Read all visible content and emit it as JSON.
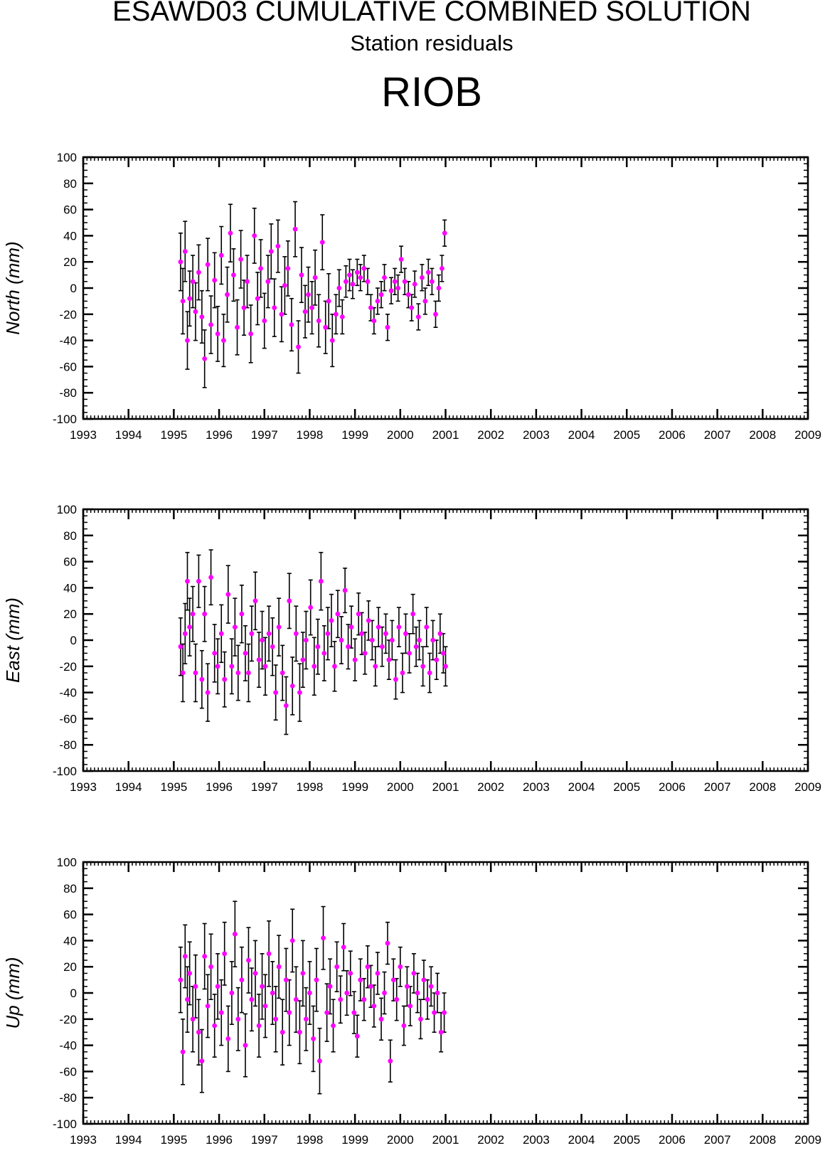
{
  "header": {
    "title": "ESAWD03 CUMULATIVE COMBINED SOLUTION",
    "subtitle": "Station residuals",
    "station": "RIOB"
  },
  "colors": {
    "marker": "#ff00ff",
    "errorbar": "#000000",
    "axis": "#000000"
  },
  "chart_data": [
    {
      "type": "scatter",
      "ylabel": "North (mm)",
      "xlim": [
        1993,
        2009
      ],
      "ylim": [
        -100,
        100
      ],
      "x_ticks": [
        "1993",
        "1994",
        "1995",
        "1996",
        "1997",
        "1998",
        "1999",
        "2000",
        "2001",
        "2002",
        "2003",
        "2004",
        "2005",
        "2006",
        "2007",
        "2008",
        "2009"
      ],
      "y_ticks": [
        "100",
        "80",
        "60",
        "40",
        "20",
        "0",
        "-20",
        "-40",
        "-60",
        "-80",
        "-100"
      ],
      "points": [
        [
          1995.15,
          20,
          22
        ],
        [
          1995.2,
          -10,
          25
        ],
        [
          1995.25,
          28,
          23
        ],
        [
          1995.3,
          -40,
          22
        ],
        [
          1995.35,
          -8,
          21
        ],
        [
          1995.42,
          5,
          20
        ],
        [
          1995.48,
          -18,
          22
        ],
        [
          1995.55,
          12,
          21
        ],
        [
          1995.62,
          -22,
          20
        ],
        [
          1995.68,
          -54,
          22
        ],
        [
          1995.75,
          18,
          20
        ],
        [
          1995.82,
          -28,
          22
        ],
        [
          1995.9,
          6,
          21
        ],
        [
          1995.97,
          -35,
          21
        ],
        [
          1996.05,
          25,
          22
        ],
        [
          1996.1,
          -40,
          20
        ],
        [
          1996.18,
          -5,
          21
        ],
        [
          1996.25,
          42,
          22
        ],
        [
          1996.32,
          10,
          20
        ],
        [
          1996.4,
          -30,
          21
        ],
        [
          1996.48,
          22,
          22
        ],
        [
          1996.55,
          -15,
          21
        ],
        [
          1996.62,
          5,
          20
        ],
        [
          1996.7,
          -35,
          22
        ],
        [
          1996.78,
          40,
          21
        ],
        [
          1996.85,
          -8,
          20
        ],
        [
          1996.92,
          15,
          22
        ],
        [
          1997.0,
          -25,
          21
        ],
        [
          1997.08,
          5,
          20
        ],
        [
          1997.15,
          28,
          21
        ],
        [
          1997.22,
          -15,
          22
        ],
        [
          1997.3,
          32,
          20
        ],
        [
          1997.38,
          -20,
          21
        ],
        [
          1997.45,
          2,
          22
        ],
        [
          1997.52,
          15,
          21
        ],
        [
          1997.6,
          -28,
          20
        ],
        [
          1997.68,
          45,
          21
        ],
        [
          1997.75,
          -45,
          20
        ],
        [
          1997.82,
          10,
          21
        ],
        [
          1997.9,
          -18,
          20
        ],
        [
          1997.97,
          -5,
          21
        ],
        [
          1998.05,
          -15,
          20
        ],
        [
          1998.12,
          8,
          21
        ],
        [
          1998.2,
          -25,
          20
        ],
        [
          1998.28,
          35,
          21
        ],
        [
          1998.35,
          -30,
          20
        ],
        [
          1998.42,
          -10,
          21
        ],
        [
          1998.5,
          -40,
          20
        ],
        [
          1998.58,
          -20,
          15
        ],
        [
          1998.65,
          0,
          14
        ],
        [
          1998.72,
          -22,
          13
        ],
        [
          1998.8,
          5,
          12
        ],
        [
          1998.88,
          10,
          12
        ],
        [
          1998.95,
          3,
          11
        ],
        [
          1999.05,
          12,
          10
        ],
        [
          1999.12,
          8,
          10
        ],
        [
          1999.2,
          15,
          10
        ],
        [
          1999.28,
          5,
          10
        ],
        [
          1999.35,
          -15,
          10
        ],
        [
          1999.42,
          -25,
          10
        ],
        [
          1999.5,
          -10,
          10
        ],
        [
          1999.58,
          -5,
          10
        ],
        [
          1999.65,
          8,
          10
        ],
        [
          1999.72,
          -30,
          10
        ],
        [
          1999.8,
          -2,
          10
        ],
        [
          1999.88,
          5,
          10
        ],
        [
          1999.95,
          0,
          10
        ],
        [
          2000.02,
          22,
          10
        ],
        [
          2000.1,
          5,
          10
        ],
        [
          2000.18,
          -5,
          10
        ],
        [
          2000.25,
          -15,
          10
        ],
        [
          2000.32,
          3,
          10
        ],
        [
          2000.4,
          -22,
          10
        ],
        [
          2000.48,
          8,
          10
        ],
        [
          2000.55,
          -10,
          10
        ],
        [
          2000.62,
          12,
          10
        ],
        [
          2000.7,
          5,
          10
        ],
        [
          2000.78,
          -20,
          10
        ],
        [
          2000.85,
          0,
          10
        ],
        [
          2000.92,
          15,
          10
        ],
        [
          2000.98,
          42,
          10
        ]
      ]
    },
    {
      "type": "scatter",
      "ylabel": "East (mm)",
      "xlim": [
        1993,
        2009
      ],
      "ylim": [
        -100,
        100
      ],
      "x_ticks": [
        "1993",
        "1994",
        "1995",
        "1996",
        "1997",
        "1998",
        "1999",
        "2000",
        "2001",
        "2002",
        "2003",
        "2004",
        "2005",
        "2006",
        "2007",
        "2008",
        "2009"
      ],
      "y_ticks": [
        "100",
        "80",
        "60",
        "40",
        "20",
        "0",
        "-20",
        "-40",
        "-60",
        "-80",
        "-100"
      ],
      "points": [
        [
          1995.15,
          -5,
          22
        ],
        [
          1995.2,
          -25,
          22
        ],
        [
          1995.25,
          5,
          23
        ],
        [
          1995.3,
          45,
          22
        ],
        [
          1995.35,
          10,
          22
        ],
        [
          1995.42,
          20,
          21
        ],
        [
          1995.48,
          -25,
          22
        ],
        [
          1995.55,
          45,
          20
        ],
        [
          1995.62,
          -30,
          22
        ],
        [
          1995.68,
          20,
          21
        ],
        [
          1995.75,
          -40,
          22
        ],
        [
          1995.82,
          48,
          21
        ],
        [
          1995.9,
          -10,
          22
        ],
        [
          1995.97,
          -20,
          21
        ],
        [
          1996.05,
          5,
          22
        ],
        [
          1996.12,
          -30,
          21
        ],
        [
          1996.2,
          35,
          22
        ],
        [
          1996.28,
          -20,
          21
        ],
        [
          1996.35,
          10,
          22
        ],
        [
          1996.42,
          -25,
          21
        ],
        [
          1996.5,
          20,
          22
        ],
        [
          1996.58,
          -10,
          21
        ],
        [
          1996.65,
          -25,
          22
        ],
        [
          1996.72,
          5,
          21
        ],
        [
          1996.8,
          30,
          22
        ],
        [
          1996.88,
          -15,
          21
        ],
        [
          1996.95,
          0,
          22
        ],
        [
          1997.02,
          -20,
          22
        ],
        [
          1997.1,
          5,
          21
        ],
        [
          1997.18,
          -5,
          22
        ],
        [
          1997.25,
          -40,
          21
        ],
        [
          1997.32,
          10,
          22
        ],
        [
          1997.4,
          -25,
          21
        ],
        [
          1997.48,
          -50,
          22
        ],
        [
          1997.55,
          30,
          21
        ],
        [
          1997.62,
          -35,
          22
        ],
        [
          1997.7,
          5,
          21
        ],
        [
          1997.78,
          -40,
          22
        ],
        [
          1997.85,
          -15,
          21
        ],
        [
          1997.92,
          0,
          22
        ],
        [
          1998.02,
          25,
          21
        ],
        [
          1998.1,
          -20,
          22
        ],
        [
          1998.18,
          -5,
          21
        ],
        [
          1998.25,
          45,
          22
        ],
        [
          1998.32,
          -10,
          21
        ],
        [
          1998.4,
          5,
          20
        ],
        [
          1998.48,
          15,
          20
        ],
        [
          1998.55,
          -20,
          19
        ],
        [
          1998.62,
          20,
          18
        ],
        [
          1998.7,
          0,
          18
        ],
        [
          1998.78,
          38,
          17
        ],
        [
          1998.85,
          -5,
          17
        ],
        [
          1998.92,
          10,
          16
        ],
        [
          1999.0,
          -15,
          16
        ],
        [
          1999.08,
          20,
          16
        ],
        [
          1999.15,
          5,
          16
        ],
        [
          1999.22,
          -10,
          16
        ],
        [
          1999.3,
          15,
          15
        ],
        [
          1999.38,
          0,
          15
        ],
        [
          1999.45,
          -20,
          15
        ],
        [
          1999.52,
          10,
          15
        ],
        [
          1999.6,
          -5,
          15
        ],
        [
          1999.68,
          5,
          15
        ],
        [
          1999.75,
          -15,
          15
        ],
        [
          1999.82,
          0,
          15
        ],
        [
          1999.9,
          -30,
          15
        ],
        [
          1999.97,
          10,
          15
        ],
        [
          2000.05,
          -25,
          15
        ],
        [
          2000.12,
          5,
          15
        ],
        [
          2000.2,
          -10,
          15
        ],
        [
          2000.28,
          20,
          15
        ],
        [
          2000.35,
          -5,
          15
        ],
        [
          2000.42,
          0,
          15
        ],
        [
          2000.5,
          -20,
          15
        ],
        [
          2000.58,
          10,
          15
        ],
        [
          2000.65,
          -25,
          15
        ],
        [
          2000.72,
          0,
          15
        ],
        [
          2000.8,
          -15,
          15
        ],
        [
          2000.88,
          5,
          15
        ],
        [
          2000.95,
          -10,
          15
        ],
        [
          2001.0,
          -20,
          15
        ]
      ]
    },
    {
      "type": "scatter",
      "ylabel": "Up (mm)",
      "xlim": [
        1993,
        2009
      ],
      "ylim": [
        -100,
        100
      ],
      "x_ticks": [
        "1993",
        "1994",
        "1995",
        "1996",
        "1997",
        "1998",
        "1999",
        "2000",
        "2001",
        "2002",
        "2003",
        "2004",
        "2005",
        "2006",
        "2007",
        "2008",
        "2009"
      ],
      "y_ticks": [
        "100",
        "80",
        "60",
        "40",
        "20",
        "0",
        "-20",
        "-40",
        "-60",
        "-80",
        "-100"
      ],
      "points": [
        [
          1995.15,
          10,
          25
        ],
        [
          1995.2,
          -45,
          25
        ],
        [
          1995.25,
          28,
          24
        ],
        [
          1995.3,
          -5,
          25
        ],
        [
          1995.35,
          15,
          24
        ],
        [
          1995.42,
          -20,
          25
        ],
        [
          1995.48,
          5,
          24
        ],
        [
          1995.55,
          -30,
          25
        ],
        [
          1995.62,
          -52,
          24
        ],
        [
          1995.68,
          28,
          25
        ],
        [
          1995.75,
          -10,
          24
        ],
        [
          1995.82,
          20,
          25
        ],
        [
          1995.9,
          -25,
          24
        ],
        [
          1995.97,
          5,
          25
        ],
        [
          1996.05,
          -15,
          25
        ],
        [
          1996.12,
          30,
          24
        ],
        [
          1996.2,
          -35,
          25
        ],
        [
          1996.28,
          0,
          24
        ],
        [
          1996.35,
          45,
          25
        ],
        [
          1996.42,
          -20,
          24
        ],
        [
          1996.5,
          10,
          25
        ],
        [
          1996.58,
          -40,
          24
        ],
        [
          1996.65,
          25,
          25
        ],
        [
          1996.72,
          -5,
          24
        ],
        [
          1996.8,
          15,
          25
        ],
        [
          1996.88,
          -25,
          24
        ],
        [
          1996.95,
          5,
          25
        ],
        [
          1997.02,
          -10,
          24
        ],
        [
          1997.1,
          30,
          25
        ],
        [
          1997.18,
          0,
          24
        ],
        [
          1997.25,
          -20,
          25
        ],
        [
          1997.32,
          20,
          24
        ],
        [
          1997.4,
          -30,
          25
        ],
        [
          1997.48,
          10,
          24
        ],
        [
          1997.55,
          -15,
          25
        ],
        [
          1997.62,
          40,
          24
        ],
        [
          1997.7,
          -5,
          25
        ],
        [
          1997.78,
          -30,
          24
        ],
        [
          1997.85,
          15,
          25
        ],
        [
          1997.92,
          -20,
          24
        ],
        [
          1998.0,
          0,
          24
        ],
        [
          1998.08,
          -35,
          25
        ],
        [
          1998.15,
          10,
          24
        ],
        [
          1998.22,
          -52,
          25
        ],
        [
          1998.3,
          42,
          24
        ],
        [
          1998.38,
          -15,
          22
        ],
        [
          1998.45,
          5,
          21
        ],
        [
          1998.52,
          -25,
          20
        ],
        [
          1998.6,
          20,
          19
        ],
        [
          1998.68,
          -5,
          18
        ],
        [
          1998.75,
          35,
          18
        ],
        [
          1998.82,
          0,
          17
        ],
        [
          1998.9,
          15,
          17
        ],
        [
          1998.98,
          -15,
          16
        ],
        [
          1999.05,
          -33,
          16
        ],
        [
          1999.12,
          10,
          16
        ],
        [
          1999.2,
          -5,
          16
        ],
        [
          1999.28,
          20,
          16
        ],
        [
          1999.35,
          5,
          16
        ],
        [
          1999.42,
          -10,
          16
        ],
        [
          1999.5,
          15,
          16
        ],
        [
          1999.58,
          -20,
          16
        ],
        [
          1999.65,
          0,
          16
        ],
        [
          1999.72,
          38,
          16
        ],
        [
          1999.78,
          -52,
          16
        ],
        [
          1999.85,
          10,
          16
        ],
        [
          1999.92,
          -5,
          16
        ],
        [
          2000.0,
          20,
          15
        ],
        [
          2000.08,
          -25,
          15
        ],
        [
          2000.15,
          5,
          15
        ],
        [
          2000.22,
          -10,
          15
        ],
        [
          2000.3,
          15,
          15
        ],
        [
          2000.38,
          0,
          15
        ],
        [
          2000.45,
          -20,
          15
        ],
        [
          2000.52,
          10,
          15
        ],
        [
          2000.6,
          -5,
          15
        ],
        [
          2000.68,
          5,
          15
        ],
        [
          2000.75,
          -15,
          15
        ],
        [
          2000.82,
          0,
          15
        ],
        [
          2000.9,
          -30,
          15
        ],
        [
          2000.97,
          -15,
          15
        ]
      ]
    }
  ]
}
